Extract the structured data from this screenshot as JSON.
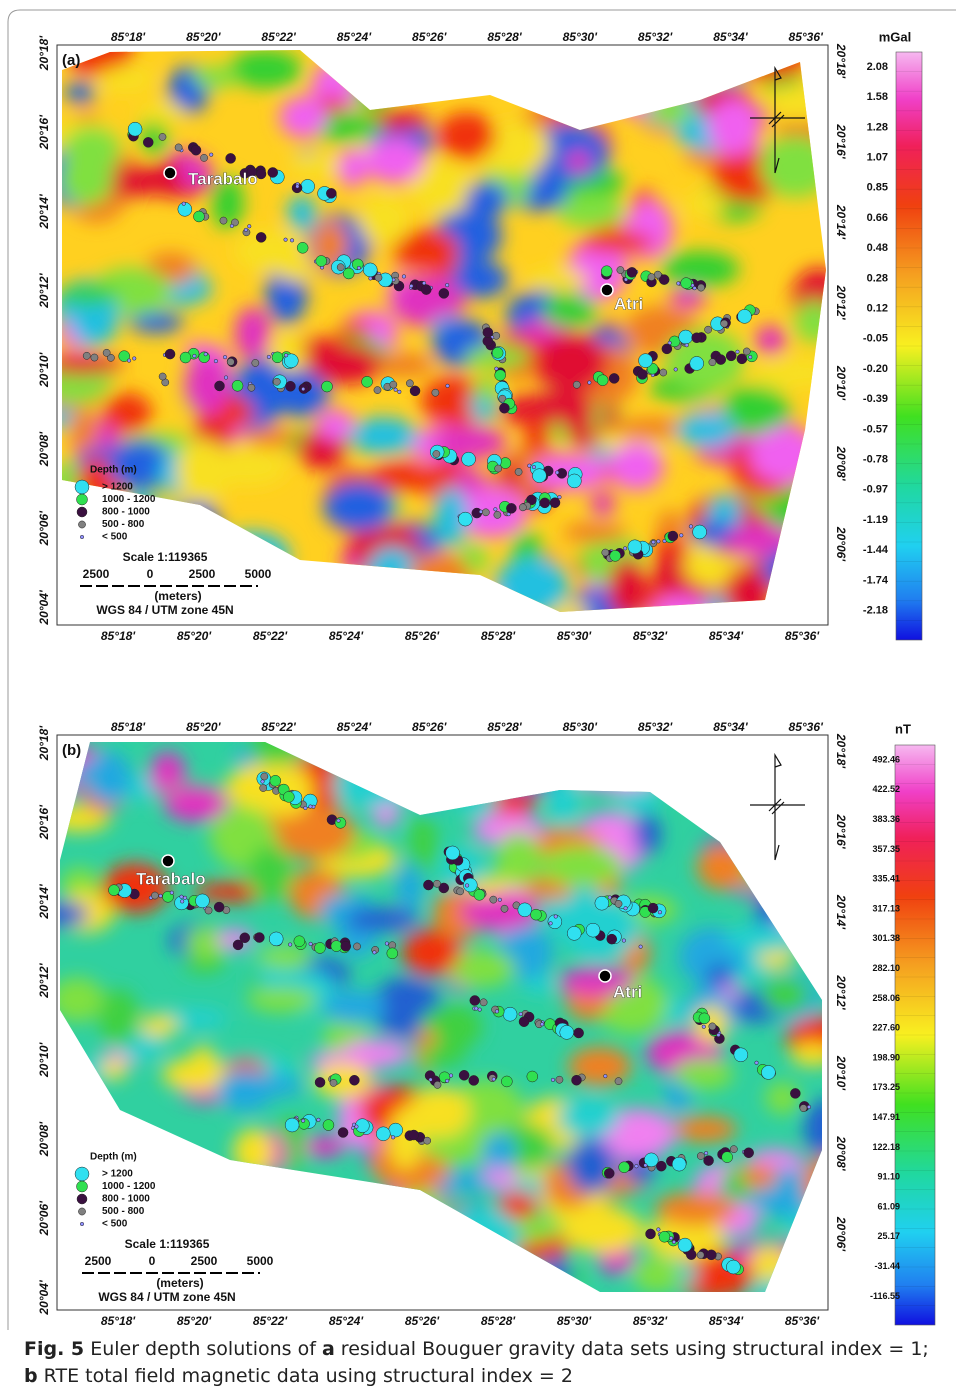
{
  "panels": [
    {
      "label": "(a)",
      "top_ticks": [
        "85°18'",
        "85°20'",
        "85°22'",
        "85°24'",
        "85°26'",
        "85°28'",
        "85°30'",
        "85°32'",
        "85°34'",
        "85°36'"
      ],
      "bottom_ticks": [
        "85°18'",
        "85°20'",
        "85°22'",
        "85°24'",
        "85°26'",
        "85°28'",
        "85°30'",
        "85°32'",
        "85°34'",
        "85°36'"
      ],
      "left_ticks": [
        "20°18'",
        "20°16'",
        "20°14'",
        "20°12'",
        "20°10'",
        "20°08'",
        "20°06'",
        "20°04'"
      ],
      "right_ticks": [
        "20°18'",
        "20°16'",
        "20°14'",
        "20°12'",
        "20°10'",
        "20°08'",
        "20°06'"
      ],
      "places": [
        "Tarabalo",
        "Atri"
      ],
      "legend": {
        "title": "Depth  (m)",
        "items": [
          ">  1200",
          "1000  -  1200",
          "800  -  1000",
          "500  -  800",
          "<  500"
        ]
      },
      "scale": {
        "title": "Scale 1:119365",
        "labels": [
          "2500",
          "0",
          "2500",
          "5000"
        ],
        "unit": "(meters)",
        "datum": "WGS 84 / UTM zone 45N"
      },
      "colorbar": {
        "unit": "mGal",
        "labels": [
          "2.08",
          "1.58",
          "1.28",
          "1.07",
          "0.85",
          "0.66",
          "0.48",
          "0.28",
          "0.12",
          "-0.05",
          "-0.20",
          "-0.39",
          "-0.57",
          "-0.78",
          "-0.97",
          "-1.19",
          "-1.44",
          "-1.74",
          "-2.18"
        ]
      }
    },
    {
      "label": "(b)",
      "top_ticks": [
        "85°18'",
        "85°20'",
        "85°22'",
        "85°24'",
        "85°26'",
        "85°28'",
        "85°30'",
        "85°32'",
        "85°34'",
        "85°36'"
      ],
      "bottom_ticks": [
        "85°18'",
        "85°20'",
        "85°22'",
        "85°24'",
        "85°26'",
        "85°28'",
        "85°30'",
        "85°32'",
        "85°34'",
        "85°36'"
      ],
      "left_ticks": [
        "20°18'",
        "20°16'",
        "20°14'",
        "20°12'",
        "20°10'",
        "20°08'",
        "20°06'",
        "20°04'"
      ],
      "right_ticks": [
        "20°18'",
        "20°16'",
        "20°14'",
        "20°12'",
        "20°10'",
        "20°08'",
        "20°06'"
      ],
      "places": [
        "Tarabalo",
        "Atri"
      ],
      "legend": {
        "title": "Depth  (m)",
        "items": [
          ">  1200",
          "1000  -  1200",
          "800  -  1000",
          "500  -  800",
          "<  500"
        ]
      },
      "scale": {
        "title": "Scale 1:119365",
        "labels": [
          "2500",
          "0",
          "2500",
          "5000"
        ],
        "unit": "(meters)",
        "datum": "WGS 84 / UTM zone 45N"
      },
      "colorbar": {
        "unit": "nT",
        "labels": [
          "492.46",
          "422.52",
          "383.36",
          "357.35",
          "335.41",
          "317.13",
          "301.38",
          "282.10",
          "258.06",
          "227.60",
          "198.90",
          "173.25",
          "147.91",
          "122.18",
          "91.10",
          "61.09",
          "25.17",
          "-31.44",
          "-116.55"
        ]
      }
    }
  ],
  "caption": [
    "Fig. 5",
    "  Euler depth solutions of ",
    "a",
    " residual Bouguer gravity data sets using structural index = 1; ",
    "b",
    " RTE total field magnetic data using structural index = 2"
  ]
}
